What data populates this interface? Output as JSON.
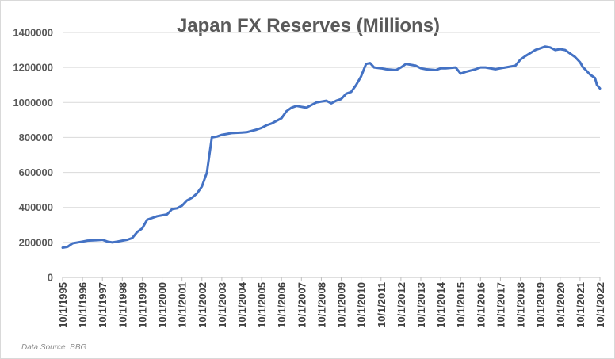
{
  "chart_data": {
    "type": "line",
    "title": "Japan FX Reserves (Millions)",
    "xlabel": "",
    "ylabel": "",
    "ylim": [
      0,
      1400000
    ],
    "yticks": [
      0,
      200000,
      400000,
      600000,
      800000,
      1000000,
      1200000,
      1400000
    ],
    "ytick_labels": [
      "0",
      "200000",
      "400000",
      "600000",
      "800000",
      "1000000",
      "1200000",
      "1400000"
    ],
    "xlim": [
      1995.75,
      2022.75
    ],
    "xtick_labels": [
      "10/1/1995",
      "10/1/1996",
      "10/1/1997",
      "10/1/1998",
      "10/1/1999",
      "10/1/2000",
      "10/1/2001",
      "10/1/2002",
      "10/1/2003",
      "10/1/2004",
      "10/1/2005",
      "10/1/2006",
      "10/1/2007",
      "10/1/2008",
      "10/1/2009",
      "10/1/2010",
      "10/1/2011",
      "10/1/2012",
      "10/1/2013",
      "10/1/2014",
      "10/1/2015",
      "10/1/2016",
      "10/1/2017",
      "10/1/2018",
      "10/1/2019",
      "10/1/2020",
      "10/1/2021",
      "10/1/2022"
    ],
    "grid": true,
    "series": [
      {
        "name": "Japan FX Reserves",
        "color": "#4472c4",
        "x": [
          1995.75,
          1996.0,
          1996.25,
          1996.75,
          1997.0,
          1997.5,
          1997.75,
          1998.0,
          1998.25,
          1998.5,
          1998.75,
          1999.0,
          1999.25,
          1999.5,
          1999.75,
          2000.0,
          2000.25,
          2000.5,
          2000.75,
          2001.0,
          2001.25,
          2001.5,
          2001.75,
          2002.0,
          2002.25,
          2002.5,
          2002.75,
          2003.0,
          2003.25,
          2003.5,
          2003.75,
          2004.0,
          2004.25,
          2004.75,
          2005.0,
          2005.5,
          2005.75,
          2006.0,
          2006.25,
          2006.5,
          2006.75,
          2007.0,
          2007.25,
          2007.5,
          2007.75,
          2008.0,
          2008.25,
          2008.5,
          2008.75,
          2009.0,
          2009.25,
          2009.5,
          2009.75,
          2010.0,
          2010.25,
          2010.5,
          2010.75,
          2011.0,
          2011.2,
          2011.4,
          2011.75,
          2012.0,
          2012.5,
          2012.75,
          2013.0,
          2013.5,
          2013.75,
          2014.0,
          2014.5,
          2014.75,
          2015.0,
          2015.5,
          2015.75,
          2016.0,
          2016.5,
          2016.75,
          2017.0,
          2017.5,
          2017.75,
          2018.0,
          2018.5,
          2018.75,
          2019.0,
          2019.5,
          2019.75,
          2020.0,
          2020.25,
          2020.5,
          2020.75,
          2021.0,
          2021.25,
          2021.5,
          2021.75,
          2021.9,
          2022.0,
          2022.25,
          2022.5,
          2022.6,
          2022.75
        ],
        "values": [
          170000,
          175000,
          195000,
          205000,
          210000,
          213000,
          215000,
          205000,
          200000,
          205000,
          210000,
          215000,
          225000,
          260000,
          280000,
          330000,
          340000,
          350000,
          355000,
          360000,
          390000,
          395000,
          410000,
          440000,
          455000,
          480000,
          520000,
          600000,
          800000,
          805000,
          815000,
          820000,
          825000,
          828000,
          830000,
          845000,
          855000,
          870000,
          880000,
          895000,
          910000,
          950000,
          970000,
          980000,
          975000,
          970000,
          985000,
          1000000,
          1005000,
          1010000,
          995000,
          1010000,
          1020000,
          1050000,
          1060000,
          1100000,
          1150000,
          1220000,
          1225000,
          1200000,
          1195000,
          1190000,
          1185000,
          1200000,
          1220000,
          1210000,
          1195000,
          1190000,
          1185000,
          1195000,
          1195000,
          1200000,
          1165000,
          1175000,
          1190000,
          1200000,
          1200000,
          1190000,
          1195000,
          1200000,
          1210000,
          1245000,
          1265000,
          1300000,
          1310000,
          1320000,
          1315000,
          1300000,
          1305000,
          1300000,
          1280000,
          1260000,
          1230000,
          1200000,
          1190000,
          1160000,
          1140000,
          1100000,
          1080000
        ]
      }
    ]
  },
  "footer": {
    "source": "Data Source: BBG"
  }
}
